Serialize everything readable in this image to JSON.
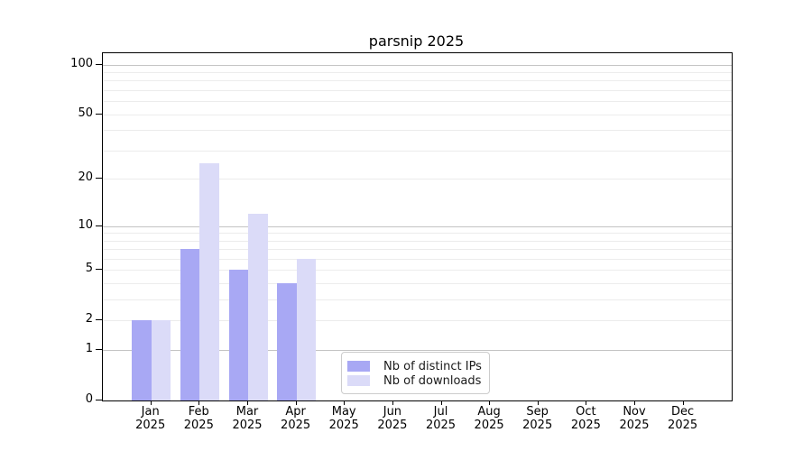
{
  "title": "parsnip 2025",
  "legend": {
    "items": [
      {
        "label": "Nb of distinct IPs",
        "color": "#a8a8f4"
      },
      {
        "label": "Nb of downloads",
        "color": "#dbdbf8"
      }
    ]
  },
  "chart_data": {
    "type": "bar",
    "title": "parsnip 2025",
    "categories": [
      "Jan 2025",
      "Feb 2025",
      "Mar 2025",
      "Apr 2025",
      "May 2025",
      "Jun 2025",
      "Jul 2025",
      "Aug 2025",
      "Sep 2025",
      "Oct 2025",
      "Nov 2025",
      "Dec 2025"
    ],
    "series": [
      {
        "name": "Nb of distinct IPs",
        "color": "#a8a8f4",
        "values": [
          2,
          7,
          5,
          4,
          0,
          0,
          0,
          0,
          0,
          0,
          0,
          0
        ]
      },
      {
        "name": "Nb of downloads",
        "color": "#dbdbf8",
        "values": [
          2,
          25,
          12,
          6,
          0,
          0,
          0,
          0,
          0,
          0,
          0,
          0
        ]
      }
    ],
    "xlabel": "",
    "ylabel": "",
    "yscale": "log1p",
    "ylim": [
      0,
      117
    ],
    "yticks": [
      0,
      1,
      2,
      5,
      10,
      20,
      50,
      100
    ],
    "major_gridlines": [
      1,
      10,
      100
    ],
    "minor_gridlines": [
      2,
      3,
      4,
      5,
      6,
      7,
      8,
      9,
      20,
      30,
      40,
      50,
      60,
      70,
      80,
      90
    ],
    "grid": true,
    "legend_position": "inside lower center",
    "colors": {
      "spine": "#000000",
      "major_grid": "#c4c4c4",
      "minor_grid": "#ececec"
    }
  }
}
